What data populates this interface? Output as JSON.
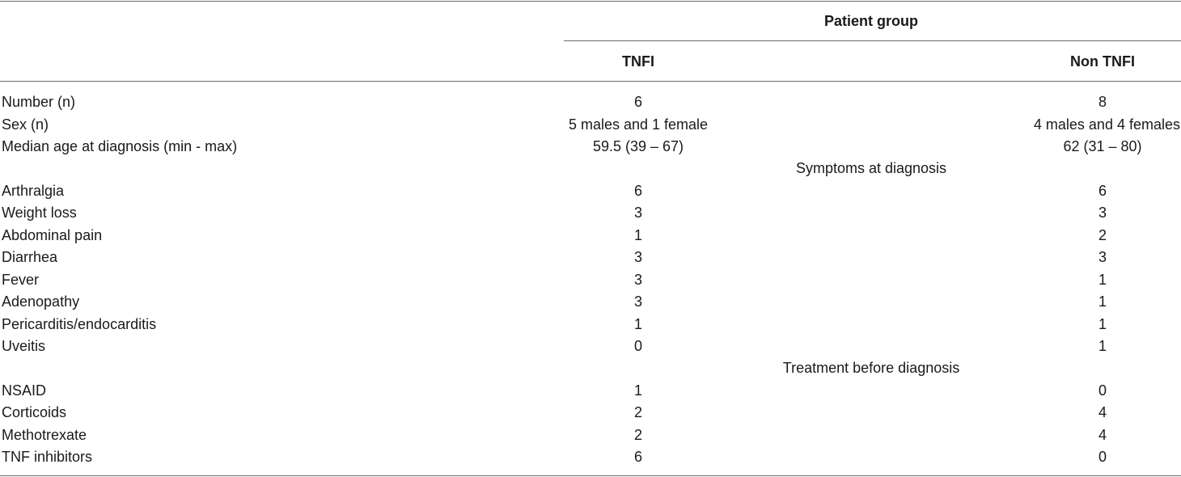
{
  "header": {
    "group_title": "Patient group",
    "col_tnfi": "TNFI",
    "col_non_tnfi": "Non TNFI"
  },
  "rows": [
    {
      "label": "Number (n)",
      "tnfi": "6",
      "non_tnfi": "8"
    },
    {
      "label": "Sex (n)",
      "tnfi": "5 males and 1 female",
      "non_tnfi": "4 males and 4 females"
    },
    {
      "label": "Median age at diagnosis (min - max)",
      "tnfi": "59.5 (39 – 67)",
      "non_tnfi": "62 (31 – 80)"
    }
  ],
  "section_symptoms": "Symptoms at diagnosis",
  "symptoms": [
    {
      "label": "Arthralgia",
      "tnfi": "6",
      "non_tnfi": "6"
    },
    {
      "label": "Weight loss",
      "tnfi": "3",
      "non_tnfi": "3"
    },
    {
      "label": "Abdominal pain",
      "tnfi": "1",
      "non_tnfi": "2"
    },
    {
      "label": "Diarrhea",
      "tnfi": "3",
      "non_tnfi": "3"
    },
    {
      "label": "Fever",
      "tnfi": "3",
      "non_tnfi": "1"
    },
    {
      "label": "Adenopathy",
      "tnfi": "3",
      "non_tnfi": "1"
    },
    {
      "label": "Pericarditis/endocarditis",
      "tnfi": "1",
      "non_tnfi": "1"
    },
    {
      "label": "Uveitis",
      "tnfi": "0",
      "non_tnfi": "1"
    }
  ],
  "section_treatment": "Treatment before diagnosis",
  "treatment": [
    {
      "label": "NSAID",
      "tnfi": "1",
      "non_tnfi": "0"
    },
    {
      "label": "Corticoids",
      "tnfi": "2",
      "non_tnfi": "4"
    },
    {
      "label": "Methotrexate",
      "tnfi": "2",
      "non_tnfi": "4"
    },
    {
      "label": "TNF inhibitors",
      "tnfi": "6",
      "non_tnfi": "0"
    }
  ]
}
